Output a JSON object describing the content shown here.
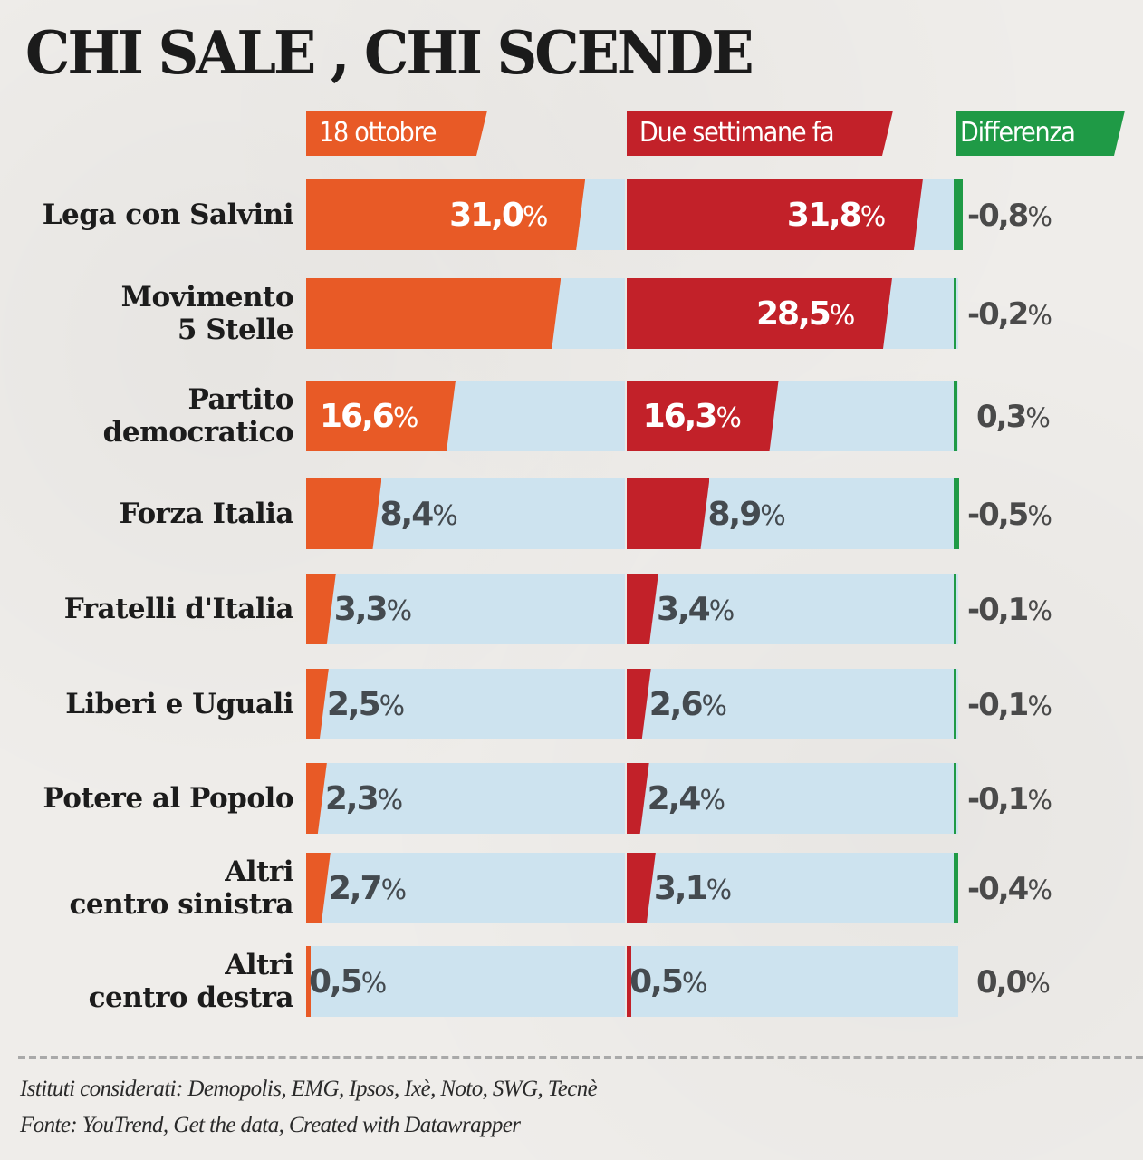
{
  "title": "CHI SALE , CHI SCENDE",
  "headers": {
    "col1": "18 ottobre",
    "col2": "Due settimane fa",
    "col3": "Differenza"
  },
  "colors": {
    "col1": "#e85a26",
    "col2": "#c22129",
    "col3": "#1f9a46",
    "track": "#cde3ef",
    "value_text_outside": "#444a4f"
  },
  "rows": [
    {
      "label": "Lega con Salvini",
      "v1": "31,0",
      "v2": "31,8",
      "diff": "-0,8"
    },
    {
      "label": "Movimento\n5 Stelle",
      "v1": "",
      "v2": "28,5",
      "diff": "-0,2"
    },
    {
      "label": "Partito\ndemocratico",
      "v1": "16,6",
      "v2": "16,3",
      "diff": "0,3"
    },
    {
      "label": "Forza Italia",
      "v1": "8,4",
      "v2": "8,9",
      "diff": "-0,5"
    },
    {
      "label": "Fratelli d'Italia",
      "v1": "3,3",
      "v2": "3,4",
      "diff": "-0,1"
    },
    {
      "label": "Liberi e Uguali",
      "v1": "2,5",
      "v2": "2,6",
      "diff": "-0,1"
    },
    {
      "label": "Potere al Popolo",
      "v1": "2,3",
      "v2": "2,4",
      "diff": "-0,1"
    },
    {
      "label": "Altri\ncentro sinistra",
      "v1": "2,7",
      "v2": "3,1",
      "diff": "-0,4"
    },
    {
      "label": "Altri\ncentro destra",
      "v1": "0,5",
      "v2": "0,5",
      "diff": "0,0"
    }
  ],
  "pct_symbol": "%",
  "footer": {
    "line1": "Istituti considerati: Demopolis, EMG, Ipsos, Ixè, Noto, SWG, Tecnè",
    "line2": "Fonte: YouTrend, Get the data, Created with Datawrapper"
  },
  "chart_data": {
    "type": "bar",
    "orientation": "horizontal",
    "title": "CHI SALE , CHI SCENDE",
    "categories": [
      "Lega con Salvini",
      "Movimento 5 Stelle",
      "Partito democratico",
      "Forza Italia",
      "Fratelli d'Italia",
      "Liberi e Uguali",
      "Potere al Popolo",
      "Altri centro sinistra",
      "Altri centro destra"
    ],
    "series": [
      {
        "name": "18 ottobre",
        "values": [
          31.0,
          28.3,
          16.6,
          8.4,
          3.3,
          2.5,
          2.3,
          2.7,
          0.5
        ],
        "color": "#e85a26",
        "note": "Movimento 5 Stelle value not printed; bar length ~28.3"
      },
      {
        "name": "Due settimane fa",
        "values": [
          31.8,
          28.5,
          16.3,
          8.9,
          3.4,
          2.6,
          2.4,
          3.1,
          0.5
        ],
        "color": "#c22129"
      },
      {
        "name": "Differenza",
        "values": [
          -0.8,
          -0.2,
          0.3,
          -0.5,
          -0.1,
          -0.1,
          -0.1,
          -0.4,
          0.0
        ],
        "color": "#1f9a46"
      }
    ],
    "unit": "%",
    "xlim": [
      0,
      35
    ],
    "grid": false,
    "legend_position": "top",
    "source": "Istituti considerati: Demopolis, EMG, Ipsos, Ixè, Noto, SWG, Tecnè / Fonte: YouTrend, Get the data, Created with Datawrapper"
  }
}
